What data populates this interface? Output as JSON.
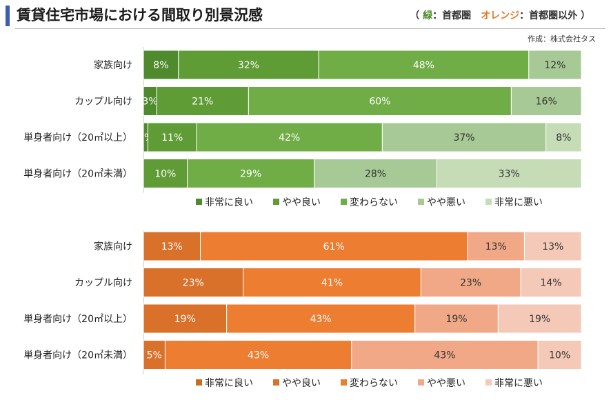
{
  "header": {
    "title": "賃貸住宅市場における間取り別景況感",
    "legend_open": "（ ",
    "legend_green": "緑",
    "legend_mid1": "：首都圏　",
    "legend_orange": "オレンジ",
    "legend_mid2": "：首都圏以外 ）",
    "credit": "作成：株式会社タス"
  },
  "chart_data": [
    {
      "type": "bar",
      "orientation": "horizontal",
      "stacked": true,
      "region": "首都圏",
      "categories": [
        "家族向け",
        "カップル向け",
        "単身者向け（20㎡以上）",
        "単身者向け（20㎡未満）"
      ],
      "series": [
        {
          "name": "非常に良い",
          "values": [
            8,
            3,
            1,
            0
          ],
          "color": "#4f8a2c",
          "text_color": "#ffffff"
        },
        {
          "name": "やや良い",
          "values": [
            32,
            21,
            11,
            10
          ],
          "color": "#5f9c36",
          "text_color": "#ffffff"
        },
        {
          "name": "変わらない",
          "values": [
            48,
            60,
            42,
            29
          ],
          "color": "#70ad47",
          "text_color": "#ffffff"
        },
        {
          "name": "やや悪い",
          "values": [
            12,
            16,
            37,
            28
          ],
          "color": "#a7c995",
          "text_color": "#333333"
        },
        {
          "name": "非常に悪い",
          "values": [
            0,
            0,
            8,
            33
          ],
          "color": "#c5dcb7",
          "text_color": "#333333"
        }
      ],
      "xlim": [
        0,
        100
      ],
      "legend": "bottom"
    },
    {
      "type": "bar",
      "orientation": "horizontal",
      "stacked": true,
      "region": "首都圏以外",
      "categories": [
        "家族向け",
        "カップル向け",
        "単身者向け（20㎡以上）",
        "単身者向け（20㎡未満）"
      ],
      "series": [
        {
          "name": "非常に良い",
          "values": [
            0,
            0,
            0,
            0
          ],
          "color": "#cc6a26",
          "text_color": "#ffffff"
        },
        {
          "name": "やや良い",
          "values": [
            13,
            23,
            19,
            5
          ],
          "color": "#d9712a",
          "text_color": "#ffffff"
        },
        {
          "name": "変わらない",
          "values": [
            61,
            41,
            43,
            43
          ],
          "color": "#ed7d31",
          "text_color": "#ffffff"
        },
        {
          "name": "やや悪い",
          "values": [
            13,
            23,
            19,
            43
          ],
          "color": "#f1a887",
          "text_color": "#333333"
        },
        {
          "name": "非常に悪い",
          "values": [
            13,
            14,
            19,
            10
          ],
          "color": "#f5c9b8",
          "text_color": "#333333"
        }
      ],
      "xlim": [
        0,
        100
      ],
      "legend": "bottom"
    }
  ]
}
